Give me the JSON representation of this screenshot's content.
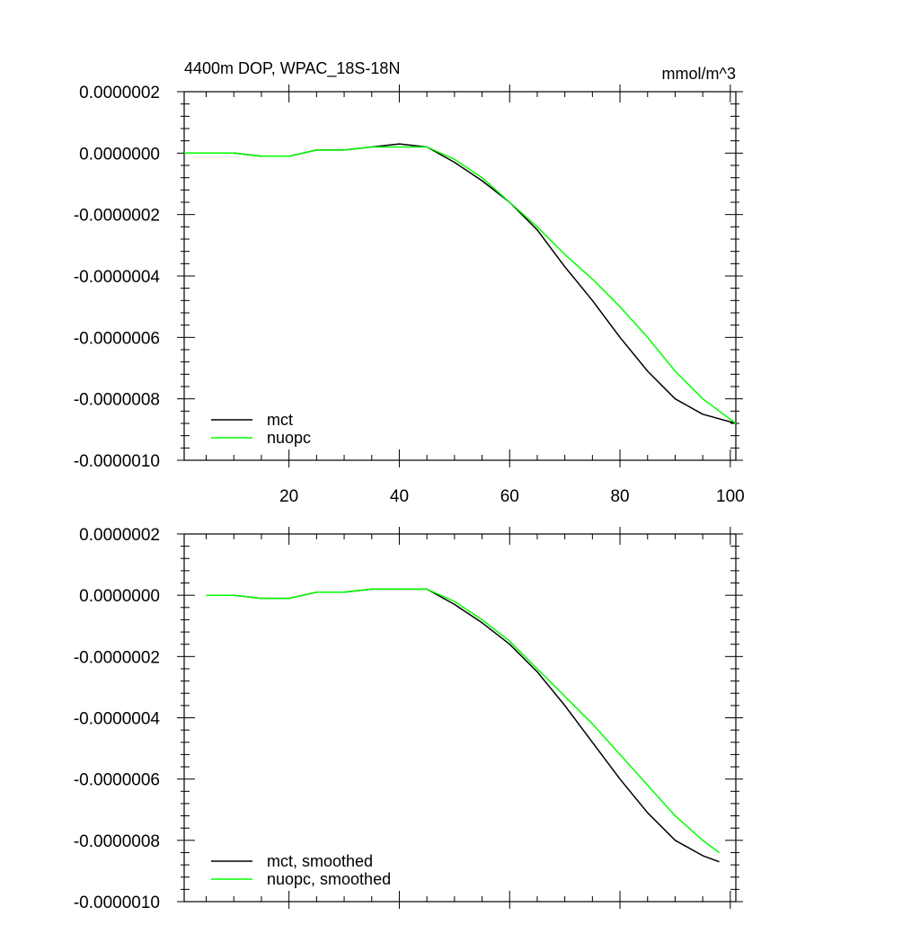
{
  "chart_data": [
    {
      "type": "line",
      "title": "4400m DOP, WPAC_18S-18N",
      "units": "mmol/m^3",
      "xlim": [
        1,
        101
      ],
      "ylim": [
        -1e-06,
        2e-07
      ],
      "xticks": [
        20,
        40,
        60,
        80,
        100
      ],
      "xtick_labels": [
        "20",
        "40",
        "60",
        "80",
        "100"
      ],
      "yticks": [
        2e-07,
        0.0,
        -2e-07,
        -4e-07,
        -6e-07,
        -8e-07,
        -1e-06
      ],
      "ytick_labels": [
        "0.0000002",
        "0.0000000",
        "-0.0000002",
        "-0.0000004",
        "-0.0000006",
        "-0.0000008",
        "-0.0000010"
      ],
      "legend": [
        "mct",
        "nuopc"
      ],
      "legend_position": "bottom-left",
      "x": [
        1,
        5,
        10,
        15,
        20,
        25,
        30,
        35,
        40,
        45,
        50,
        55,
        60,
        65,
        70,
        75,
        80,
        85,
        90,
        95,
        101
      ],
      "series": [
        {
          "name": "mct",
          "color": "#000000",
          "values": [
            0.0,
            0.0,
            0.0,
            -1e-08,
            -1e-08,
            1e-08,
            1e-08,
            2e-08,
            3e-08,
            2e-08,
            -3e-08,
            -9e-08,
            -1.6e-07,
            -2.5e-07,
            -3.7e-07,
            -4.8e-07,
            -6e-07,
            -7.1e-07,
            -8e-07,
            -8.5e-07,
            -8.8e-07
          ]
        },
        {
          "name": "nuopc",
          "color": "#00ff00",
          "values": [
            0.0,
            0.0,
            0.0,
            -1e-08,
            -1e-08,
            1e-08,
            1e-08,
            2e-08,
            2e-08,
            2e-08,
            -2e-08,
            -8e-08,
            -1.6e-07,
            -2.4e-07,
            -3.3e-07,
            -4.1e-07,
            -5e-07,
            -6e-07,
            -7.1e-07,
            -8e-07,
            -8.8e-07
          ]
        }
      ]
    },
    {
      "type": "line",
      "title": "",
      "xlim": [
        1,
        101
      ],
      "ylim": [
        -1e-06,
        2e-07
      ],
      "xticks": [
        20,
        40,
        60,
        80,
        100
      ],
      "xtick_labels": [],
      "yticks": [
        2e-07,
        0.0,
        -2e-07,
        -4e-07,
        -6e-07,
        -8e-07,
        -1e-06
      ],
      "ytick_labels": [
        "0.0000002",
        "0.0000000",
        "-0.0000002",
        "-0.0000004",
        "-0.0000006",
        "-0.0000008",
        "-0.0000010"
      ],
      "legend": [
        "mct, smoothed",
        "nuopc, smoothed"
      ],
      "legend_position": "bottom-left",
      "x": [
        5,
        10,
        15,
        20,
        25,
        30,
        35,
        40,
        45,
        50,
        55,
        60,
        65,
        70,
        75,
        80,
        85,
        90,
        95,
        98
      ],
      "series": [
        {
          "name": "mct, smoothed",
          "color": "#000000",
          "values": [
            0.0,
            0.0,
            -1e-08,
            -1e-08,
            1e-08,
            1e-08,
            2e-08,
            2e-08,
            2e-08,
            -3e-08,
            -9e-08,
            -1.6e-07,
            -2.5e-07,
            -3.6e-07,
            -4.8e-07,
            -6e-07,
            -7.1e-07,
            -8e-07,
            -8.5e-07,
            -8.7e-07
          ]
        },
        {
          "name": "nuopc, smoothed",
          "color": "#00ff00",
          "values": [
            0.0,
            0.0,
            -1e-08,
            -1e-08,
            1e-08,
            1e-08,
            2e-08,
            2e-08,
            2e-08,
            -2e-08,
            -8e-08,
            -1.5e-07,
            -2.4e-07,
            -3.3e-07,
            -4.2e-07,
            -5.2e-07,
            -6.2e-07,
            -7.2e-07,
            -8e-07,
            -8.4e-07
          ]
        }
      ]
    }
  ]
}
